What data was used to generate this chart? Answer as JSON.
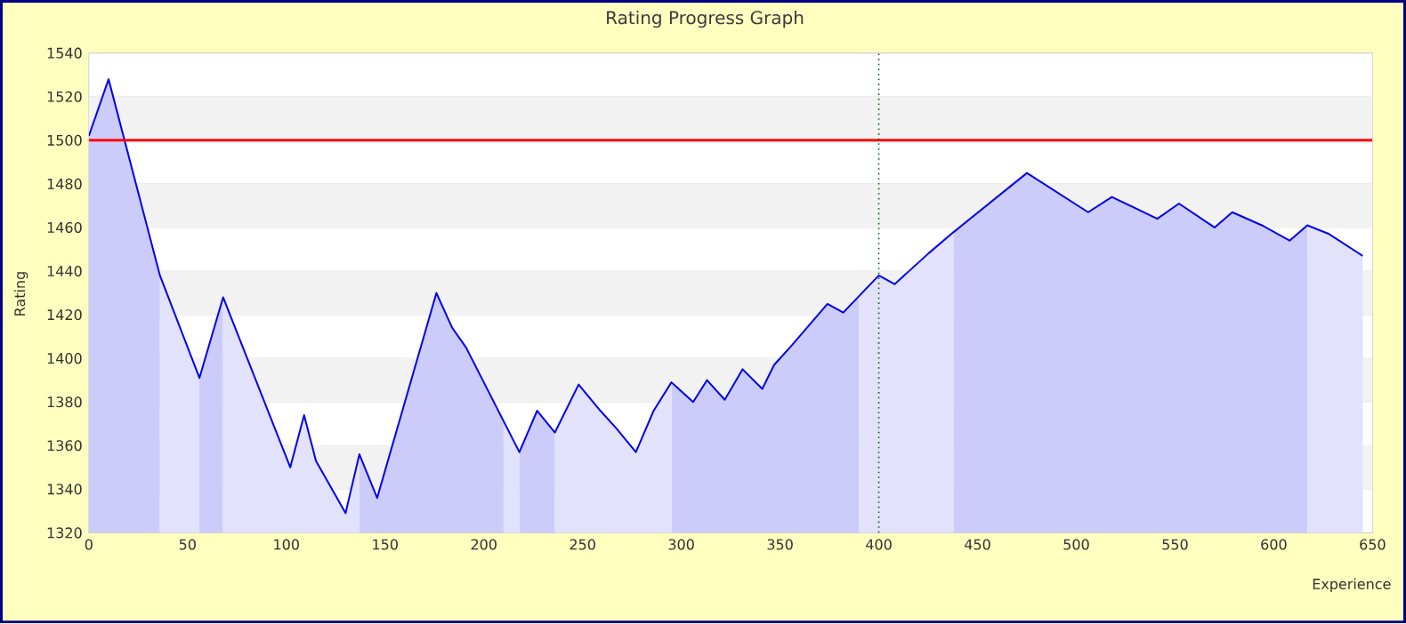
{
  "chart_data": {
    "type": "area",
    "title": "Rating Progress Graph",
    "xlabel": "Experience",
    "ylabel": "Rating",
    "xlim": [
      0,
      650
    ],
    "ylim": [
      1320,
      1540
    ],
    "xticks": [
      0,
      50,
      100,
      150,
      200,
      250,
      300,
      350,
      400,
      450,
      500,
      550,
      600,
      650
    ],
    "yticks": [
      1320,
      1340,
      1360,
      1380,
      1400,
      1420,
      1440,
      1460,
      1480,
      1500,
      1520,
      1540
    ],
    "grid": "y",
    "series": [
      {
        "color": "#ccccfa",
        "x": [
          0,
          10,
          36
        ],
        "values": [
          1502,
          1528,
          1438
        ]
      },
      {
        "color": "#e2e2fc",
        "x": [
          36,
          56
        ],
        "values": [
          1438,
          1391
        ]
      },
      {
        "color": "#ccccfa",
        "x": [
          56,
          68
        ],
        "values": [
          1391,
          1428
        ]
      },
      {
        "color": "#e2e2fc",
        "x": [
          68,
          102,
          109,
          115,
          130,
          137
        ],
        "values": [
          1428,
          1350,
          1374,
          1353,
          1329,
          1356
        ]
      },
      {
        "color": "#ccccfa",
        "x": [
          137,
          146,
          176,
          184,
          191,
          210
        ],
        "values": [
          1356,
          1336,
          1430,
          1414,
          1405,
          1372
        ]
      },
      {
        "color": "#e2e2fc",
        "x": [
          210,
          218
        ],
        "values": [
          1372,
          1357
        ]
      },
      {
        "color": "#ccccfa",
        "x": [
          218,
          227,
          236
        ],
        "values": [
          1357,
          1376,
          1366
        ]
      },
      {
        "color": "#e2e2fc",
        "x": [
          236,
          248,
          259,
          267,
          277,
          286,
          295
        ],
        "values": [
          1366,
          1388,
          1376,
          1368,
          1357,
          1376,
          1389
        ]
      },
      {
        "color": "#ccccfa",
        "x": [
          295,
          306,
          313,
          322,
          331,
          341,
          347,
          356,
          374,
          382,
          390
        ],
        "values": [
          1389,
          1380,
          1390,
          1381,
          1395,
          1386,
          1397,
          1406,
          1425,
          1421,
          1429
        ]
      },
      {
        "color": "#e2e2fc",
        "x": [
          390,
          400,
          408,
          425,
          438
        ],
        "values": [
          1429,
          1438,
          1434,
          1448,
          1458
        ]
      },
      {
        "color": "#ccccfa",
        "x": [
          438,
          475,
          506,
          518,
          541,
          552,
          570,
          579,
          594,
          608,
          617
        ],
        "values": [
          1458,
          1485,
          1467,
          1474,
          1464,
          1471,
          1460,
          1467,
          1461,
          1454,
          1461
        ]
      },
      {
        "color": "#e2e2fc",
        "x": [
          617,
          628,
          645
        ],
        "values": [
          1461,
          1457,
          1447
        ]
      },
      {
        "type": "line",
        "color": "#0000ee",
        "x": [
          0,
          10,
          36,
          56,
          68,
          102,
          109,
          115,
          130,
          137,
          146,
          176,
          184,
          191,
          218,
          227,
          236,
          248,
          259,
          267,
          277,
          286,
          295,
          306,
          313,
          322,
          331,
          341,
          347,
          356,
          374,
          382,
          400,
          408,
          425,
          438,
          475,
          506,
          518,
          541,
          552,
          570,
          579,
          594,
          608,
          617,
          628,
          645
        ],
        "values": [
          1502,
          1528,
          1438,
          1391,
          1428,
          1350,
          1374,
          1353,
          1329,
          1356,
          1336,
          1430,
          1414,
          1405,
          1357,
          1376,
          1366,
          1388,
          1376,
          1368,
          1357,
          1376,
          1389,
          1380,
          1390,
          1381,
          1395,
          1386,
          1397,
          1406,
          1425,
          1421,
          1438,
          1434,
          1448,
          1458,
          1485,
          1467,
          1474,
          1464,
          1471,
          1460,
          1467,
          1461,
          1454,
          1461,
          1457,
          1447
        ]
      }
    ],
    "ref_lines": [
      {
        "axis": "y",
        "value": 1500,
        "color": "#ff0000",
        "line_style": "solid"
      },
      {
        "axis": "x",
        "value": 400,
        "color": "#006600",
        "line_style": "dotted"
      }
    ]
  }
}
